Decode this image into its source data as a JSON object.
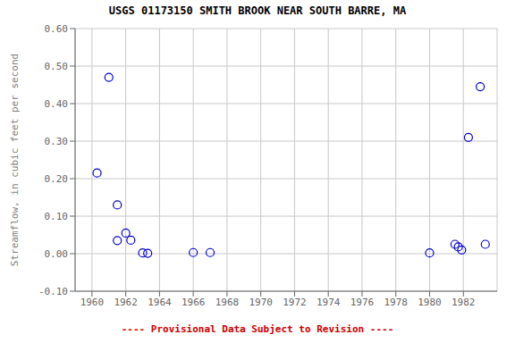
{
  "chart_data": {
    "type": "scatter",
    "title": "USGS 01173150 SMITH BROOK NEAR SOUTH BARRE, MA",
    "y_label": "Streamflow, in cubic feet per second",
    "annotations": [
      {
        "text": "---- Provisional Data Subject to Revision ----",
        "color": "#cc0000"
      }
    ],
    "x": [
      1960.3,
      1961.0,
      1961.5,
      1961.5,
      1962.0,
      1962.3,
      1963.0,
      1963.3,
      1966.0,
      1967.0,
      1980.0,
      1981.5,
      1981.7,
      1981.9,
      1982.3,
      1983.0,
      1983.3
    ],
    "values": [
      0.215,
      0.47,
      0.035,
      0.13,
      0.055,
      0.036,
      0.002,
      0.001,
      0.003,
      0.003,
      0.002,
      0.025,
      0.018,
      0.01,
      0.31,
      0.445,
      0.025
    ],
    "color": "#0000cc",
    "marker": "open circle",
    "xlim": [
      1959,
      1984
    ],
    "ylim": [
      -0.1,
      0.6
    ],
    "xticks": [
      1960,
      1962,
      1964,
      1966,
      1968,
      1970,
      1972,
      1974,
      1976,
      1978,
      1980,
      1982
    ],
    "yticks": [
      {
        "value": -0.1,
        "label": "-0.10"
      },
      {
        "value": 0,
        "label": "0.00"
      },
      {
        "value": 0.1,
        "label": "0.10"
      },
      {
        "value": 0.2,
        "label": "0.20"
      },
      {
        "value": 0.3,
        "label": "0.30"
      },
      {
        "value": 0.4,
        "label": "0.40"
      },
      {
        "value": 0.5,
        "label": "0.50"
      },
      {
        "value": 0.6,
        "label": "0.60"
      }
    ],
    "grid": true
  }
}
